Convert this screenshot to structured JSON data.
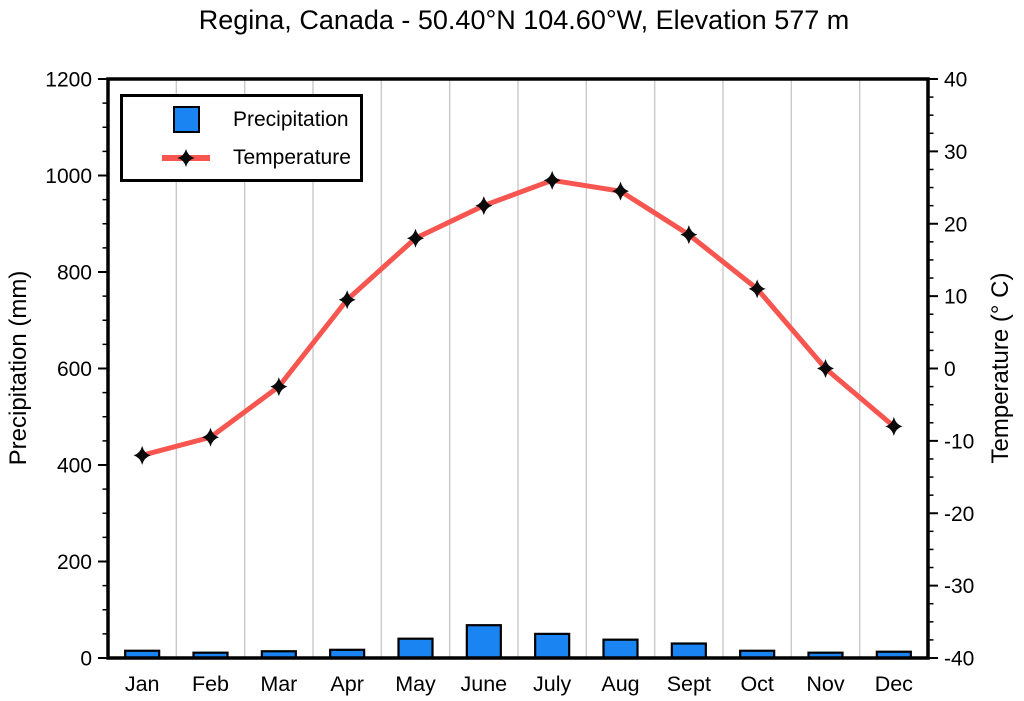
{
  "title": "Regina, Canada - 50.40°N 104.60°W, Elevation 577 m",
  "legend": {
    "precipitation_label": "Precipitation",
    "temperature_label": "Temperature"
  },
  "colors": {
    "precipitation_bar": "#1a85f2",
    "temperature_line": "#f6564f",
    "marker": "#0a0a0a",
    "grid": "#c9c9c9",
    "axis": "#000000",
    "background": "#ffffff"
  },
  "chart_data": {
    "type": "bar+line",
    "title": "Regina, Canada - 50.40°N 104.60°W, Elevation 577 m",
    "categories": [
      "Jan",
      "Feb",
      "Mar",
      "Apr",
      "May",
      "June",
      "July",
      "Aug",
      "Sept",
      "Oct",
      "Nov",
      "Dec"
    ],
    "series": [
      {
        "name": "Precipitation",
        "type": "bar",
        "y_axis": "left",
        "unit": "mm",
        "values": [
          15,
          11,
          14,
          17,
          40,
          68,
          50,
          38,
          30,
          15,
          11,
          13
        ]
      },
      {
        "name": "Temperature",
        "type": "line",
        "y_axis": "right",
        "unit": "°C",
        "values": [
          -12,
          -9.5,
          -2.5,
          9.5,
          18,
          22.5,
          26,
          24.5,
          18.5,
          11,
          0,
          -8
        ]
      }
    ],
    "axes": {
      "left": {
        "label": "Precipitation (mm)",
        "min": 0,
        "max": 1200,
        "major_step": 200,
        "minor_step": 50,
        "tick_labels": [
          "0",
          "200",
          "400",
          "600",
          "800",
          "1000",
          "1200"
        ]
      },
      "right": {
        "label": "Temperature (° C)",
        "min": -40,
        "max": 40,
        "major_step": 10,
        "minor_step": 2.5,
        "tick_labels": [
          "-40",
          "-30",
          "-20",
          "-10",
          "0",
          "10",
          "20",
          "30",
          "40"
        ]
      },
      "x": {
        "tick_labels": [
          "Jan",
          "Feb",
          "Mar",
          "Apr",
          "May",
          "June",
          "July",
          "Aug",
          "Sept",
          "Oct",
          "Nov",
          "Dec"
        ]
      }
    },
    "grid": {
      "vertical": true,
      "horizontal": false
    },
    "legend_position": "top-left"
  }
}
